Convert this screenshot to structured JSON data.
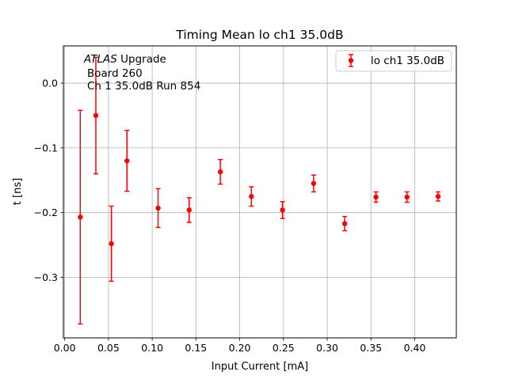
{
  "chart_data": {
    "type": "scatter",
    "title": "Timing Mean lo ch1 35.0dB",
    "xlabel": "Input Current [mA]",
    "ylabel": "t [ns]",
    "xlim": [
      -0.0015,
      0.4475
    ],
    "ylim": [
      -0.3935,
      0.0575
    ],
    "xticks": [
      0.0,
      0.05,
      0.1,
      0.15,
      0.2,
      0.25,
      0.3,
      0.35,
      0.4
    ],
    "xtick_labels": [
      "0.00",
      "0.05",
      "0.10",
      "0.15",
      "0.20",
      "0.25",
      "0.30",
      "0.35",
      "0.40"
    ],
    "yticks": [
      0.0,
      -0.1,
      -0.2,
      -0.3
    ],
    "ytick_labels": [
      "0.0",
      "−0.1",
      "−0.2",
      "−0.3"
    ],
    "grid": true,
    "legend_position": "top-right",
    "annotation": {
      "line1_italic": "ATLAS",
      "line1_rest": " Upgrade",
      "line2": "Board 260",
      "line3": "Ch 1 35.0dB  Run 854"
    },
    "series": [
      {
        "name": "lo ch1 35.0dB",
        "color": "#ff0000",
        "marker": "circle",
        "points": [
          {
            "x": 0.0178,
            "y": -0.207,
            "err": 0.165
          },
          {
            "x": 0.0356,
            "y": -0.05,
            "err": 0.09
          },
          {
            "x": 0.0533,
            "y": -0.248,
            "err": 0.058
          },
          {
            "x": 0.0711,
            "y": -0.12,
            "err": 0.047
          },
          {
            "x": 0.1067,
            "y": -0.193,
            "err": 0.03
          },
          {
            "x": 0.1422,
            "y": -0.196,
            "err": 0.019
          },
          {
            "x": 0.1778,
            "y": -0.137,
            "err": 0.019
          },
          {
            "x": 0.2133,
            "y": -0.175,
            "err": 0.015
          },
          {
            "x": 0.2489,
            "y": -0.196,
            "err": 0.013
          },
          {
            "x": 0.2844,
            "y": -0.155,
            "err": 0.013
          },
          {
            "x": 0.32,
            "y": -0.217,
            "err": 0.011
          },
          {
            "x": 0.3556,
            "y": -0.176,
            "err": 0.008
          },
          {
            "x": 0.3911,
            "y": -0.176,
            "err": 0.008
          },
          {
            "x": 0.4267,
            "y": -0.175,
            "err": 0.007
          }
        ]
      }
    ]
  }
}
